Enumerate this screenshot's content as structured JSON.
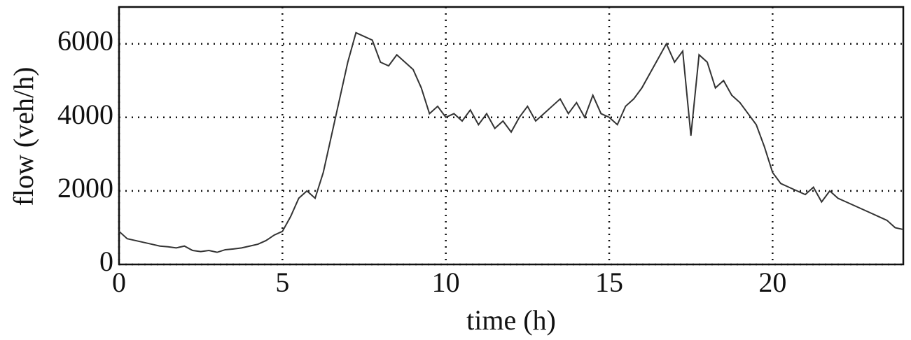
{
  "chart_data": {
    "type": "line",
    "x_label": "time (h)",
    "y_label": "flow (veh/h)",
    "x": [
      0,
      0.25,
      0.5,
      0.75,
      1,
      1.25,
      1.5,
      1.75,
      2,
      2.25,
      2.5,
      2.75,
      3,
      3.25,
      3.5,
      3.75,
      4,
      4.25,
      4.5,
      4.75,
      5,
      5.25,
      5.5,
      5.75,
      6,
      6.25,
      6.5,
      6.75,
      7,
      7.25,
      7.5,
      7.75,
      8,
      8.25,
      8.5,
      8.75,
      9,
      9.25,
      9.5,
      9.75,
      10,
      10.25,
      10.5,
      10.75,
      11,
      11.25,
      11.5,
      11.75,
      12,
      12.25,
      12.5,
      12.75,
      13,
      13.25,
      13.5,
      13.75,
      14,
      14.25,
      14.5,
      14.75,
      15,
      15.25,
      15.5,
      15.75,
      16,
      16.25,
      16.5,
      16.75,
      17,
      17.25,
      17.5,
      17.75,
      18,
      18.25,
      18.5,
      18.75,
      19,
      19.25,
      19.5,
      19.75,
      20,
      20.25,
      20.5,
      20.75,
      21,
      21.25,
      21.5,
      21.75,
      22,
      22.25,
      22.5,
      22.75,
      23,
      23.25,
      23.5,
      23.75,
      24
    ],
    "series": [
      {
        "name": "flow",
        "color": "#333333",
        "values": [
          900,
          700,
          650,
          600,
          550,
          500,
          480,
          450,
          500,
          380,
          350,
          380,
          330,
          400,
          420,
          450,
          500,
          550,
          650,
          800,
          900,
          1300,
          1800,
          2000,
          1800,
          2500,
          3500,
          4500,
          5500,
          6300,
          6200,
          6100,
          5500,
          5400,
          5700,
          5500,
          5300,
          4800,
          4100,
          4300,
          4000,
          4100,
          3900,
          4200,
          3800,
          4100,
          3700,
          3900,
          3600,
          4000,
          4300,
          3900,
          4100,
          4300,
          4500,
          4100,
          4400,
          4000,
          4600,
          4100,
          4000,
          3800,
          4300,
          4500,
          4800,
          5200,
          5600,
          6000,
          5500,
          5800,
          3500,
          5700,
          5500,
          4800,
          5000,
          4600,
          4400,
          4100,
          3800,
          3200,
          2500,
          2200,
          2100,
          2000,
          1900,
          2100,
          1700,
          2000,
          1800,
          1700,
          1600,
          1500,
          1400,
          1300,
          1200,
          1000,
          950
        ]
      }
    ],
    "xlim": [
      0,
      24
    ],
    "xticks": [
      0,
      5,
      10,
      15,
      20
    ],
    "ylim": [
      0,
      7000
    ],
    "yticks": [
      0,
      2000,
      4000,
      6000
    ],
    "grid": true
  }
}
